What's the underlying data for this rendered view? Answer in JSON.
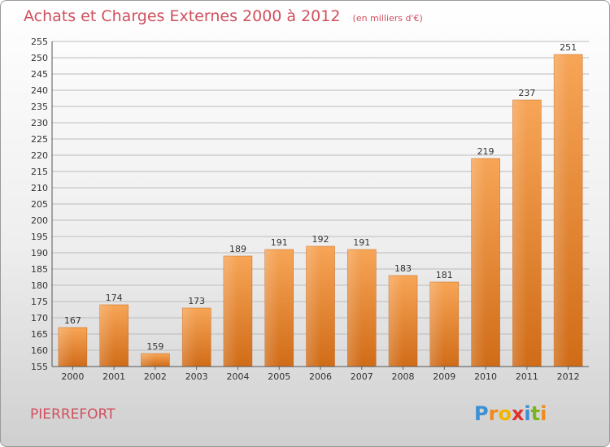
{
  "chart_data": {
    "type": "bar",
    "title": "Achats et Charges Externes 2000 à 2012",
    "subtitle": "(en milliers d'€)",
    "categories": [
      "2000",
      "2001",
      "2002",
      "2003",
      "2004",
      "2005",
      "2006",
      "2007",
      "2008",
      "2009",
      "2010",
      "2011",
      "2012"
    ],
    "values": [
      167,
      174,
      159,
      173,
      189,
      191,
      192,
      191,
      183,
      181,
      219,
      237,
      251
    ],
    "ylim": [
      155,
      255
    ],
    "yticks": [
      155,
      160,
      165,
      170,
      175,
      180,
      185,
      190,
      195,
      200,
      205,
      210,
      215,
      220,
      225,
      230,
      235,
      240,
      245,
      250,
      255
    ],
    "grid": true,
    "bar_color": "#f0913c",
    "xlabel": "",
    "ylabel": ""
  },
  "location": "PIERREFORT",
  "brand": {
    "letters": [
      "P",
      "r",
      "o",
      "x",
      "i",
      "t",
      "i"
    ],
    "colors": [
      "#3b8fd4",
      "#f08a1c",
      "#f5b400",
      "#e0322c",
      "#3b8fd4",
      "#7ab51d",
      "#f08a1c"
    ]
  },
  "colors": {
    "title": "#d0505e",
    "grid": "#bbbbbb"
  }
}
